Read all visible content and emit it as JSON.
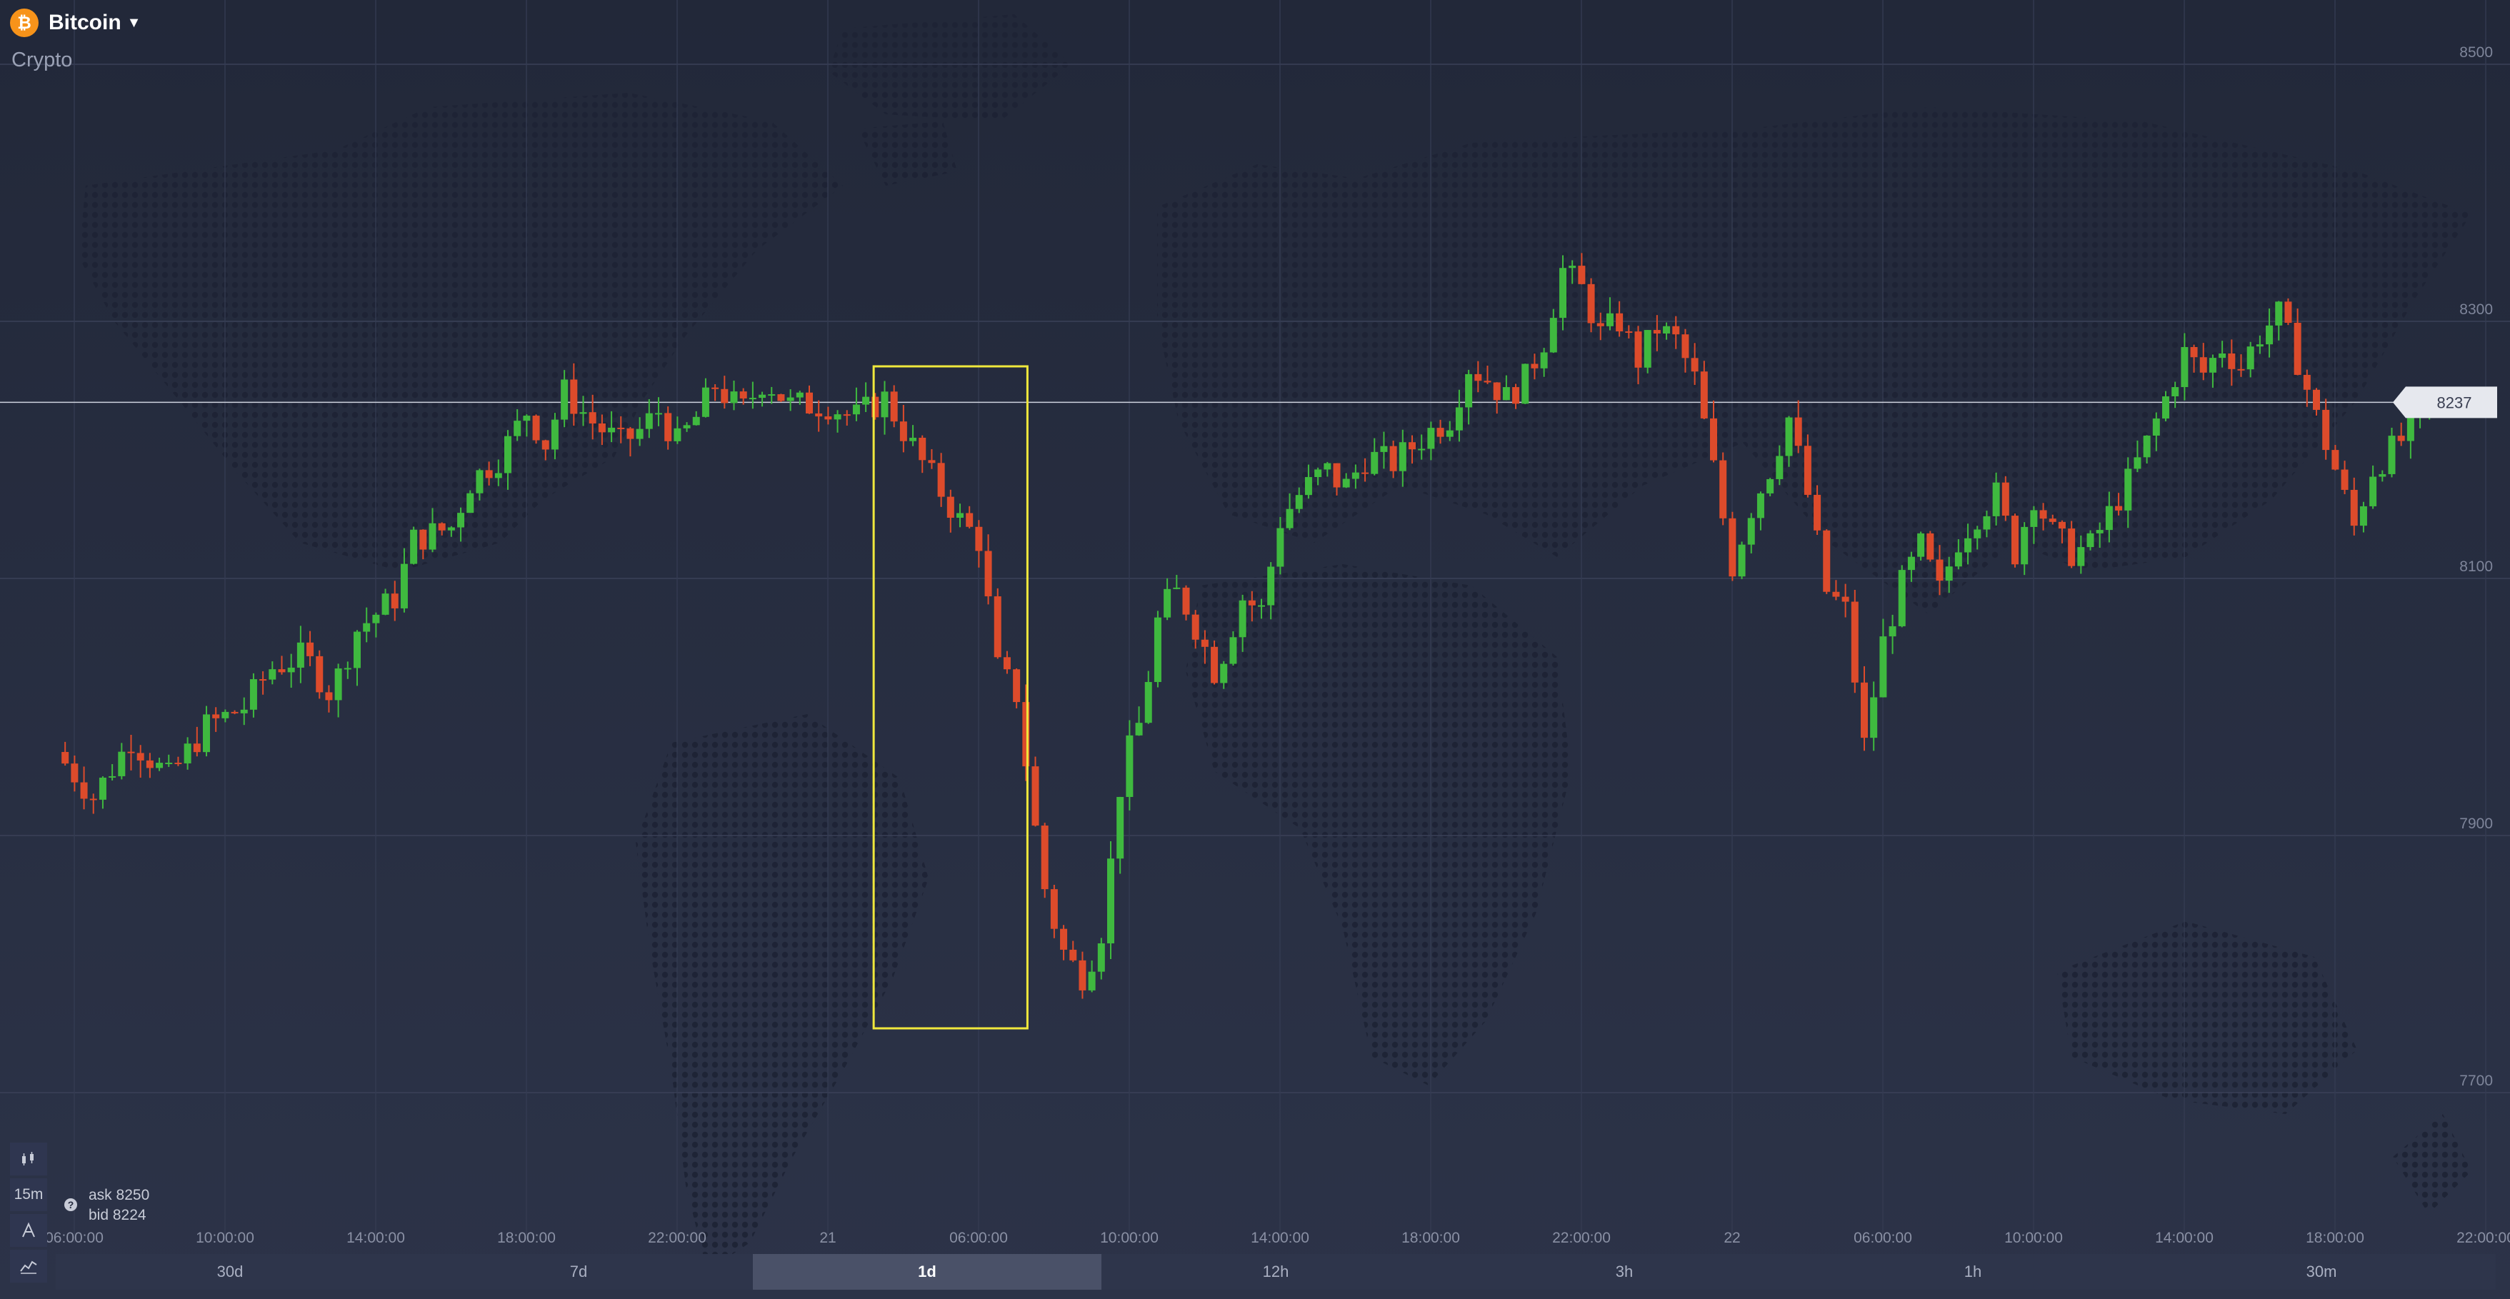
{
  "asset": {
    "name": "Bitcoin",
    "category": "Crypto",
    "icon": "bitcoin-icon",
    "icon_glyph": "₿"
  },
  "quote": {
    "ask_label": "ask",
    "ask_value": "8250",
    "bid_label": "bid",
    "bid_value": "8224",
    "current_price": "8237"
  },
  "toolbar": {
    "chart_type_icon": "candlestick-icon",
    "interval_label": "15m",
    "drawing_icon": "drawing-tool-icon",
    "indicators_icon": "indicators-icon"
  },
  "periods": [
    {
      "label": "30d",
      "active": false
    },
    {
      "label": "7d",
      "active": false
    },
    {
      "label": "1d",
      "active": true
    },
    {
      "label": "12h",
      "active": false
    },
    {
      "label": "3h",
      "active": false
    },
    {
      "label": "1h",
      "active": false
    },
    {
      "label": "30m",
      "active": false
    }
  ],
  "colors": {
    "background": "#252b3f",
    "up": "#3fb93f",
    "down": "#dd4b2b",
    "highlight_box": "#f0e83c",
    "price_label_bg": "#e6e8ee"
  },
  "chart_data": {
    "type": "candlestick",
    "instrument": "Bitcoin",
    "candle_interval": "15m",
    "y_ticks": [
      8500,
      8300,
      8100,
      7900,
      7700
    ],
    "x_tick_labels": [
      "06:00:00",
      "10:00:00",
      "14:00:00",
      "18:00:00",
      "22:00:00",
      "21",
      "06:00:00",
      "10:00:00",
      "14:00:00",
      "18:00:00",
      "22:00:00",
      "22",
      "06:00:00",
      "10:00:00",
      "14:00:00",
      "18:00:00",
      "22:00:00"
    ],
    "current_price": 8237,
    "highlight_range_prices": [
      7750,
      8265
    ],
    "x_range_hours": [
      0,
      64
    ],
    "close_path": [
      [
        0.0,
        7965
      ],
      [
        1.0,
        7930
      ],
      [
        2.0,
        7975
      ],
      [
        3.0,
        7945
      ],
      [
        4.0,
        7985
      ],
      [
        5.0,
        8000
      ],
      [
        5.7,
        8030
      ],
      [
        6.6,
        8040
      ],
      [
        7.3,
        8010
      ],
      [
        8.0,
        8060
      ],
      [
        9.0,
        8085
      ],
      [
        9.5,
        8130
      ],
      [
        10.5,
        8140
      ],
      [
        11.0,
        8175
      ],
      [
        11.8,
        8195
      ],
      [
        12.5,
        8230
      ],
      [
        13.0,
        8205
      ],
      [
        13.5,
        8245
      ],
      [
        14.3,
        8220
      ],
      [
        15.0,
        8205
      ],
      [
        15.5,
        8215
      ],
      [
        16.0,
        8230
      ],
      [
        16.5,
        8205
      ],
      [
        17.0,
        8225
      ],
      [
        17.5,
        8250
      ],
      [
        18.2,
        8230
      ],
      [
        18.8,
        8255
      ],
      [
        19.5,
        8235
      ],
      [
        20.5,
        8235
      ],
      [
        21.2,
        8225
      ],
      [
        22.0,
        8240
      ],
      [
        22.5,
        8215
      ],
      [
        23.0,
        8190
      ],
      [
        24.0,
        8145
      ],
      [
        24.5,
        8130
      ],
      [
        25.0,
        8030
      ],
      [
        25.5,
        8010
      ],
      [
        26.0,
        7905
      ],
      [
        26.3,
        7850
      ],
      [
        26.8,
        7805
      ],
      [
        27.3,
        7790
      ],
      [
        27.8,
        7830
      ],
      [
        28.3,
        7950
      ],
      [
        28.8,
        7990
      ],
      [
        29.3,
        8075
      ],
      [
        29.8,
        8090
      ],
      [
        30.3,
        8060
      ],
      [
        30.8,
        8025
      ],
      [
        31.5,
        8085
      ],
      [
        32.0,
        8075
      ],
      [
        32.5,
        8145
      ],
      [
        33.0,
        8165
      ],
      [
        33.7,
        8185
      ],
      [
        34.2,
        8170
      ],
      [
        34.8,
        8195
      ],
      [
        35.5,
        8190
      ],
      [
        36.5,
        8215
      ],
      [
        37.0,
        8225
      ],
      [
        37.5,
        8265
      ],
      [
        38.0,
        8255
      ],
      [
        38.5,
        8240
      ],
      [
        39.0,
        8255
      ],
      [
        39.5,
        8285
      ],
      [
        40.0,
        8340
      ],
      [
        40.5,
        8325
      ],
      [
        41.0,
        8290
      ],
      [
        41.5,
        8300
      ],
      [
        42.0,
        8270
      ],
      [
        42.5,
        8295
      ],
      [
        43.0,
        8285
      ],
      [
        43.5,
        8255
      ],
      [
        44.0,
        8185
      ],
      [
        44.5,
        8110
      ],
      [
        45.0,
        8155
      ],
      [
        45.5,
        8185
      ],
      [
        46.0,
        8225
      ],
      [
        46.5,
        8165
      ],
      [
        47.0,
        8090
      ],
      [
        47.5,
        8075
      ],
      [
        48.0,
        7970
      ],
      [
        48.5,
        8050
      ],
      [
        49.0,
        8095
      ],
      [
        49.5,
        8125
      ],
      [
        50.0,
        8090
      ],
      [
        50.5,
        8130
      ],
      [
        51.0,
        8150
      ],
      [
        51.5,
        8165
      ],
      [
        52.0,
        8120
      ],
      [
        52.5,
        8165
      ],
      [
        53.0,
        8135
      ],
      [
        53.5,
        8120
      ],
      [
        54.0,
        8125
      ],
      [
        54.5,
        8150
      ],
      [
        55.0,
        8175
      ],
      [
        55.5,
        8205
      ],
      [
        56.0,
        8240
      ],
      [
        56.5,
        8275
      ],
      [
        57.0,
        8260
      ],
      [
        57.5,
        8280
      ],
      [
        58.0,
        8265
      ],
      [
        58.5,
        8290
      ],
      [
        59.0,
        8305
      ],
      [
        59.5,
        8270
      ],
      [
        60.0,
        8225
      ],
      [
        60.5,
        8185
      ],
      [
        61.0,
        8140
      ],
      [
        61.5,
        8185
      ],
      [
        62.0,
        8200
      ],
      [
        62.5,
        8215
      ],
      [
        63.0,
        8237
      ]
    ]
  }
}
